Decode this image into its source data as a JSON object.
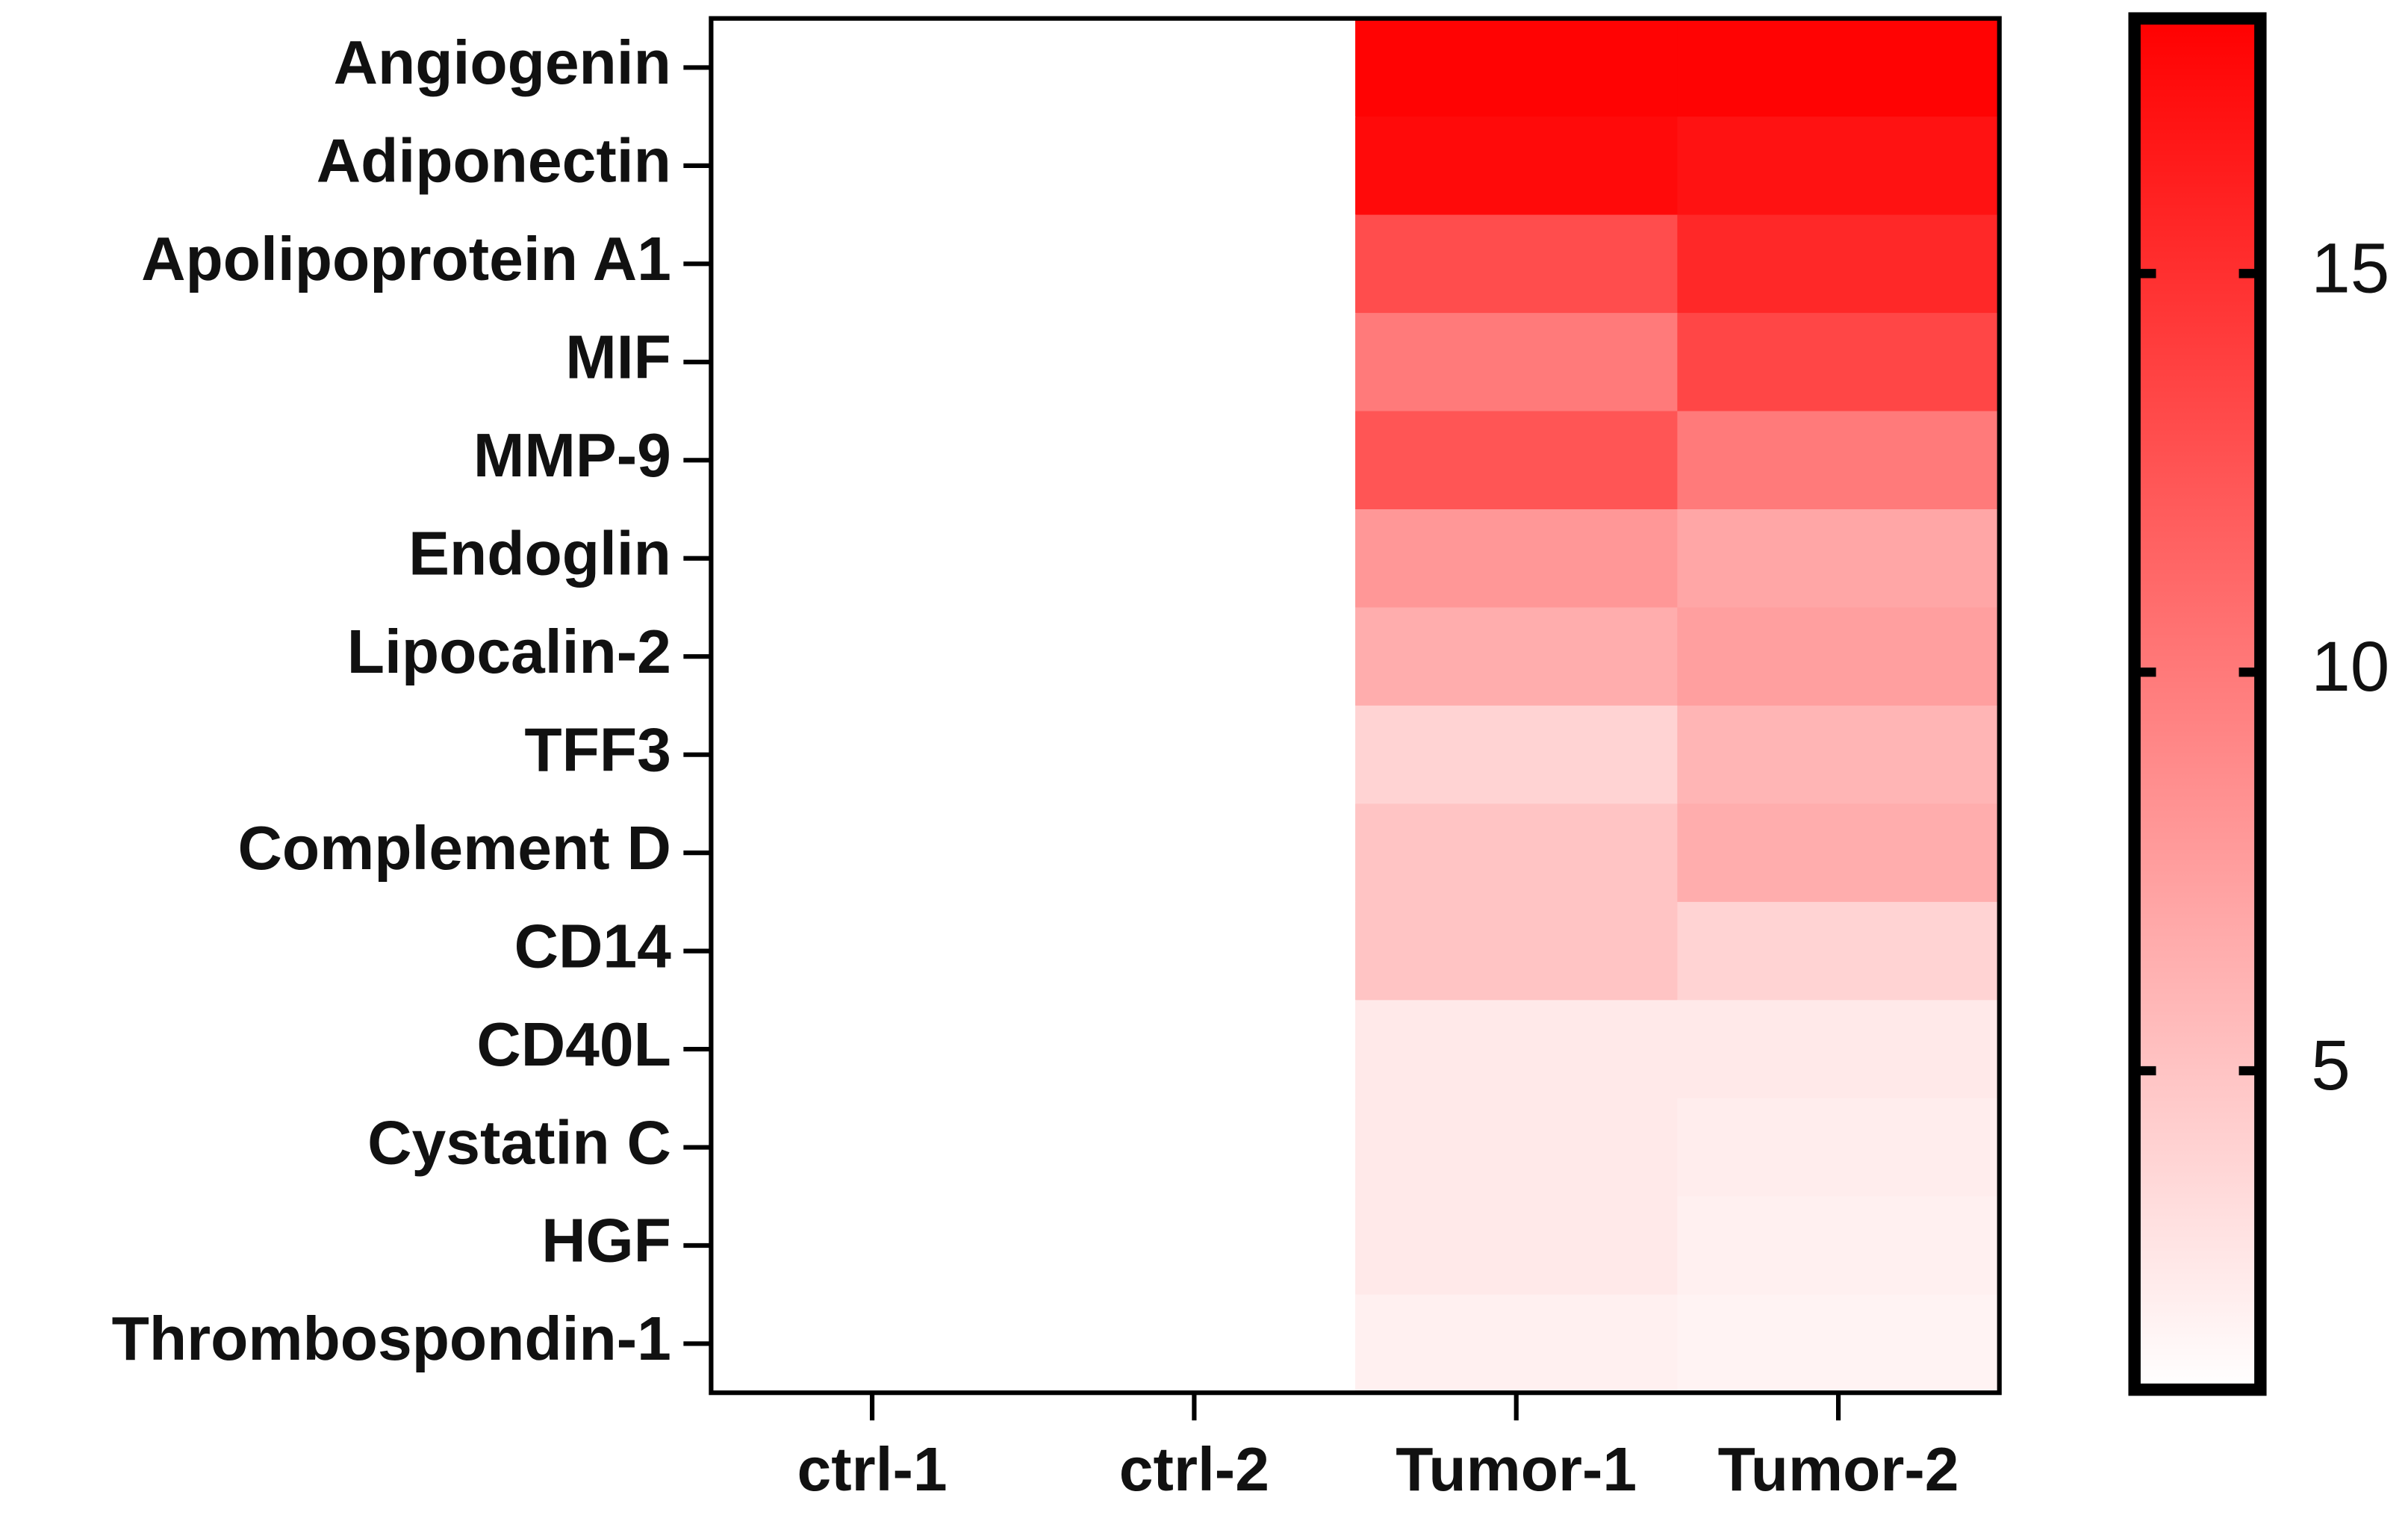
{
  "chart_data": {
    "type": "heatmap",
    "rows": [
      "Angiogenin",
      "Adiponectin",
      "Apolipoprotein A1",
      "MIF",
      "MMP-9",
      "Endoglin",
      "Lipocalin-2",
      "TFF3",
      "Complement D",
      "CD14",
      "CD40L",
      "Cystatin C",
      "HGF",
      "Thrombospondin-1"
    ],
    "columns": [
      "ctrl-1",
      "ctrl-2",
      "Tumor-1",
      "Tumor-2"
    ],
    "values": [
      [
        1,
        1,
        18,
        18
      ],
      [
        1,
        1,
        17.5,
        17
      ],
      [
        1,
        1,
        13,
        15.5
      ],
      [
        1,
        1,
        10,
        13.5
      ],
      [
        1,
        0.9,
        12.5,
        10
      ],
      [
        1,
        1,
        8,
        7
      ],
      [
        1,
        1,
        6.5,
        7.5
      ],
      [
        1,
        1,
        4,
        6
      ],
      [
        1,
        1,
        5,
        6.5
      ],
      [
        1,
        1,
        5,
        4
      ],
      [
        1,
        1,
        2.5,
        2.5
      ],
      [
        1,
        1,
        2.5,
        2.2
      ],
      [
        1,
        1,
        2.5,
        2
      ],
      [
        1,
        1,
        2,
        1.8
      ]
    ],
    "colormap": [
      "#ffffff",
      "#ff0000"
    ],
    "zlim": [
      1,
      18.2
    ],
    "zticks": [
      5,
      10,
      15
    ]
  }
}
